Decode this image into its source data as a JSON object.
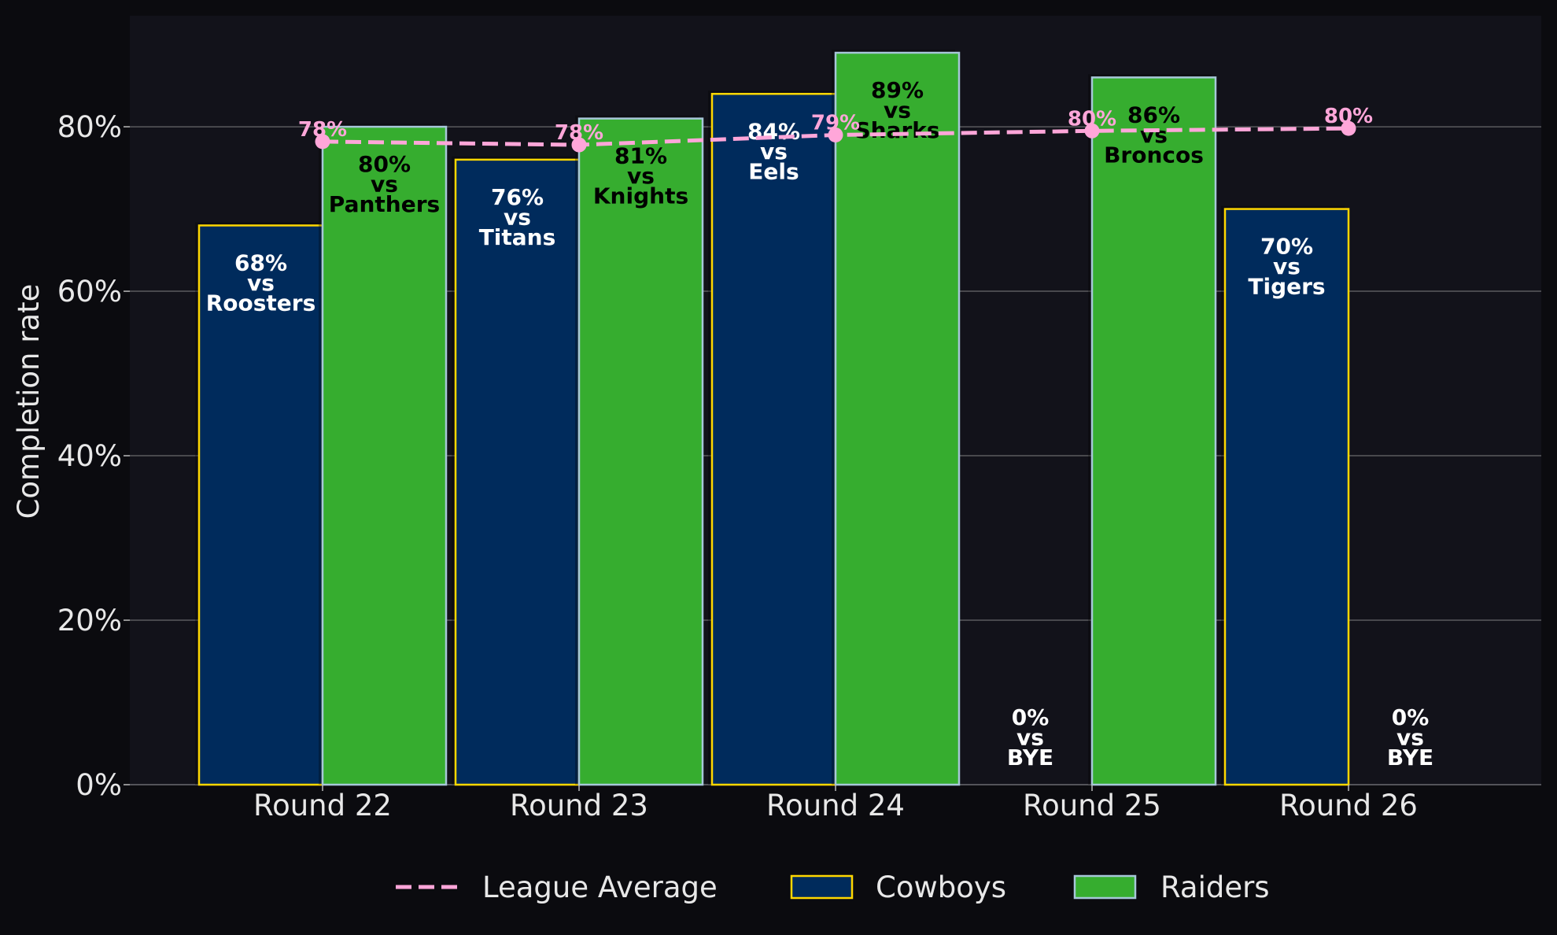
{
  "chart_data": {
    "type": "bar",
    "ylabel": "Completion rate",
    "ylim": [
      0,
      93.5
    ],
    "yticks": [
      0,
      20,
      40,
      60,
      80
    ],
    "ytick_labels": [
      "0%",
      "20%",
      "40%",
      "60%",
      "80%"
    ],
    "grid": "y",
    "legend_position": "bottom-center",
    "categories": [
      "Round 22",
      "Round 23",
      "Round 24",
      "Round 25",
      "Round 26"
    ],
    "series": [
      {
        "name": "Cowboys",
        "values": [
          68,
          76,
          84,
          0,
          70
        ],
        "labels": [
          [
            "68%",
            "vs",
            "Roosters"
          ],
          [
            "76%",
            "vs",
            "Titans"
          ],
          [
            "84%",
            "vs",
            "Eels"
          ],
          [
            "0%",
            "vs",
            "BYE"
          ],
          [
            "70%",
            "vs",
            "Tigers"
          ]
        ],
        "fill": "#002b5c",
        "edge": "#ffd700",
        "label_color": "#ffffff"
      },
      {
        "name": "Raiders",
        "values": [
          80,
          81,
          89,
          86,
          0
        ],
        "labels": [
          [
            "80%",
            "vs",
            "Panthers"
          ],
          [
            "81%",
            "vs",
            "Knights"
          ],
          [
            "89%",
            "vs",
            "Sharks"
          ],
          [
            "86%",
            "vs",
            "Broncos"
          ],
          [
            "0%",
            "vs",
            "BYE"
          ]
        ],
        "fill": "#36ad2f",
        "edge": "#a7c7d9",
        "label_color": "#000000"
      }
    ],
    "line": {
      "name": "League Average",
      "values": [
        78.2,
        77.8,
        79,
        79.5,
        79.8
      ],
      "labels": [
        "78%",
        "78%",
        "79%",
        "80%",
        "80%"
      ],
      "color": "#ffa6d9",
      "style": "dashed"
    },
    "legend": [
      "League Average",
      "Cowboys",
      "Raiders"
    ],
    "colors": {
      "background": "#0b0b0f",
      "plot_background": "#12121a",
      "grid": "#5a5a5e",
      "axis_text": "#e8e8e8"
    }
  }
}
